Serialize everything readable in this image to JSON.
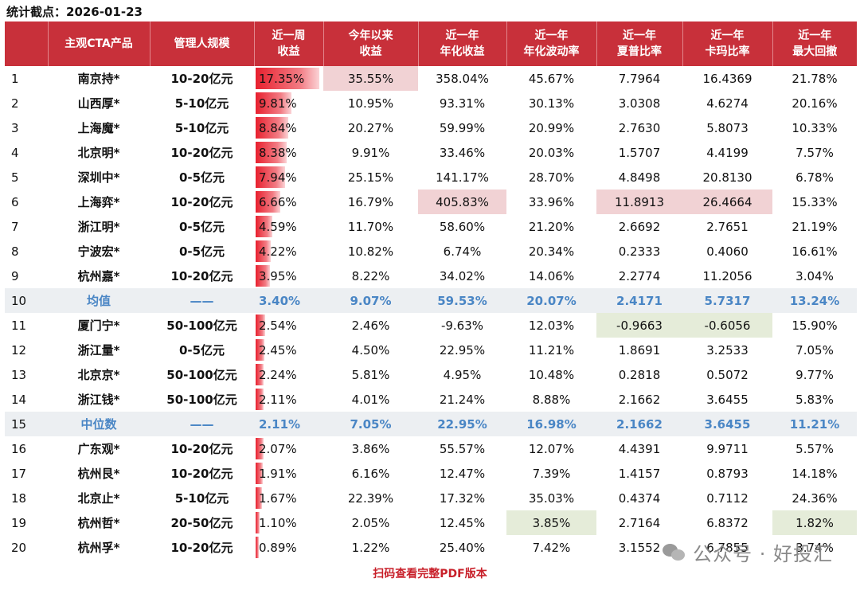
{
  "caption": "统计截点：2026-01-23",
  "headers": [
    {
      "l1": "主观CTA产品",
      "l2": ""
    },
    {
      "l1": "管理人规模",
      "l2": ""
    },
    {
      "l1": "近一周",
      "l2": "收益"
    },
    {
      "l1": "今年以来",
      "l2": "收益"
    },
    {
      "l1": "近一年",
      "l2": "年化收益"
    },
    {
      "l1": "近一年",
      "l2": "年化波动率"
    },
    {
      "l1": "近一年",
      "l2": "夏普比率"
    },
    {
      "l1": "近一年",
      "l2": "卡玛比率"
    },
    {
      "l1": "近一年",
      "l2": "最大回撤"
    }
  ],
  "rows": [
    {
      "rank": "1",
      "name": "南京持*",
      "scale": "10-20亿元",
      "week": "17.35%",
      "ytd": "35.55%",
      "ret": "358.04%",
      "vol": "45.67%",
      "sharpe": "7.7964",
      "calmar": "16.4369",
      "dd": "21.78%"
    },
    {
      "rank": "2",
      "name": "山西厚*",
      "scale": "5-10亿元",
      "week": "9.81%",
      "ytd": "10.95%",
      "ret": "93.31%",
      "vol": "30.13%",
      "sharpe": "3.0308",
      "calmar": "4.6274",
      "dd": "20.16%"
    },
    {
      "rank": "3",
      "name": "上海魔*",
      "scale": "5-10亿元",
      "week": "8.84%",
      "ytd": "20.27%",
      "ret": "59.99%",
      "vol": "20.99%",
      "sharpe": "2.7630",
      "calmar": "5.8073",
      "dd": "10.33%"
    },
    {
      "rank": "4",
      "name": "北京明*",
      "scale": "10-20亿元",
      "week": "8.38%",
      "ytd": "9.91%",
      "ret": "33.46%",
      "vol": "20.03%",
      "sharpe": "1.5707",
      "calmar": "4.4199",
      "dd": "7.57%"
    },
    {
      "rank": "5",
      "name": "深圳中*",
      "scale": "0-5亿元",
      "week": "7.94%",
      "ytd": "25.15%",
      "ret": "141.17%",
      "vol": "28.70%",
      "sharpe": "4.8498",
      "calmar": "20.8130",
      "dd": "6.78%"
    },
    {
      "rank": "6",
      "name": "上海弈*",
      "scale": "10-20亿元",
      "week": "6.66%",
      "ytd": "16.79%",
      "ret": "405.83%",
      "vol": "33.96%",
      "sharpe": "11.8913",
      "calmar": "26.4664",
      "dd": "15.33%"
    },
    {
      "rank": "7",
      "name": "浙江明*",
      "scale": "0-5亿元",
      "week": "4.59%",
      "ytd": "11.70%",
      "ret": "58.60%",
      "vol": "21.20%",
      "sharpe": "2.6692",
      "calmar": "2.7651",
      "dd": "21.19%"
    },
    {
      "rank": "8",
      "name": "宁波宏*",
      "scale": "0-5亿元",
      "week": "4.22%",
      "ytd": "10.82%",
      "ret": "6.74%",
      "vol": "20.34%",
      "sharpe": "0.2333",
      "calmar": "0.4060",
      "dd": "16.61%"
    },
    {
      "rank": "9",
      "name": "杭州嘉*",
      "scale": "10-20亿元",
      "week": "3.95%",
      "ytd": "8.22%",
      "ret": "34.02%",
      "vol": "14.06%",
      "sharpe": "2.2774",
      "calmar": "11.2056",
      "dd": "3.04%"
    },
    {
      "rank": "10",
      "name": "均值",
      "scale": "——",
      "week": "3.40%",
      "ytd": "9.07%",
      "ret": "59.53%",
      "vol": "20.07%",
      "sharpe": "2.4171",
      "calmar": "5.7317",
      "dd": "13.24%",
      "stat": true
    },
    {
      "rank": "11",
      "name": "厦门宁*",
      "scale": "50-100亿元",
      "week": "2.54%",
      "ytd": "2.46%",
      "ret": "-9.63%",
      "vol": "12.03%",
      "sharpe": "-0.9663",
      "calmar": "-0.6056",
      "dd": "15.90%"
    },
    {
      "rank": "12",
      "name": "浙江量*",
      "scale": "0-5亿元",
      "week": "2.45%",
      "ytd": "4.50%",
      "ret": "22.95%",
      "vol": "11.21%",
      "sharpe": "1.8691",
      "calmar": "3.2533",
      "dd": "7.05%"
    },
    {
      "rank": "13",
      "name": "北京京*",
      "scale": "50-100亿元",
      "week": "2.24%",
      "ytd": "5.81%",
      "ret": "4.95%",
      "vol": "10.48%",
      "sharpe": "0.2818",
      "calmar": "0.5072",
      "dd": "9.77%"
    },
    {
      "rank": "14",
      "name": "浙江钱*",
      "scale": "50-100亿元",
      "week": "2.11%",
      "ytd": "4.01%",
      "ret": "21.24%",
      "vol": "8.88%",
      "sharpe": "2.1662",
      "calmar": "3.6455",
      "dd": "5.83%"
    },
    {
      "rank": "15",
      "name": "中位数",
      "scale": "——",
      "week": "2.11%",
      "ytd": "7.05%",
      "ret": "22.95%",
      "vol": "16.98%",
      "sharpe": "2.1662",
      "calmar": "3.6455",
      "dd": "11.21%",
      "stat": true
    },
    {
      "rank": "16",
      "name": "广东观*",
      "scale": "10-20亿元",
      "week": "2.07%",
      "ytd": "3.86%",
      "ret": "55.57%",
      "vol": "12.07%",
      "sharpe": "4.4391",
      "calmar": "9.9711",
      "dd": "5.57%"
    },
    {
      "rank": "17",
      "name": "杭州艮*",
      "scale": "10-20亿元",
      "week": "1.91%",
      "ytd": "6.16%",
      "ret": "12.47%",
      "vol": "7.39%",
      "sharpe": "1.4157",
      "calmar": "0.8793",
      "dd": "14.18%"
    },
    {
      "rank": "18",
      "name": "北京止*",
      "scale": "5-10亿元",
      "week": "1.67%",
      "ytd": "22.39%",
      "ret": "17.32%",
      "vol": "35.03%",
      "sharpe": "0.4374",
      "calmar": "0.7112",
      "dd": "24.36%"
    },
    {
      "rank": "19",
      "name": "杭州哲*",
      "scale": "20-50亿元",
      "week": "1.10%",
      "ytd": "2.05%",
      "ret": "12.45%",
      "vol": "3.85%",
      "sharpe": "2.7164",
      "calmar": "6.8372",
      "dd": "1.82%"
    },
    {
      "rank": "20",
      "name": "杭州孚*",
      "scale": "10-20亿元",
      "week": "0.89%",
      "ytd": "1.22%",
      "ret": "25.40%",
      "vol": "7.42%",
      "sharpe": "3.1552",
      "calmar": "6.7855",
      "dd": "3.74%"
    }
  ],
  "highlights": [
    {
      "row": 0,
      "col": "ytd",
      "color": "red"
    },
    {
      "row": 5,
      "col": "ret",
      "color": "red"
    },
    {
      "row": 5,
      "col": "sharpe",
      "color": "red"
    },
    {
      "row": 5,
      "col": "calmar",
      "color": "red"
    },
    {
      "row": 10,
      "col": "sharpe",
      "color": "green"
    },
    {
      "row": 10,
      "col": "calmar",
      "color": "green"
    },
    {
      "row": 18,
      "col": "vol",
      "color": "green"
    },
    {
      "row": 18,
      "col": "dd",
      "color": "green"
    }
  ],
  "colors": {
    "header": "#c8303a",
    "bar": "#e8202e",
    "highlight_red": "#f1d2d4",
    "highlight_green": "#e5ecd9",
    "stat_text": "#4a86c5"
  },
  "footer": "扫码查看完整PDF版本",
  "watermark": {
    "icon": "wechat-icon",
    "text": "公众号 · 好投汇"
  }
}
